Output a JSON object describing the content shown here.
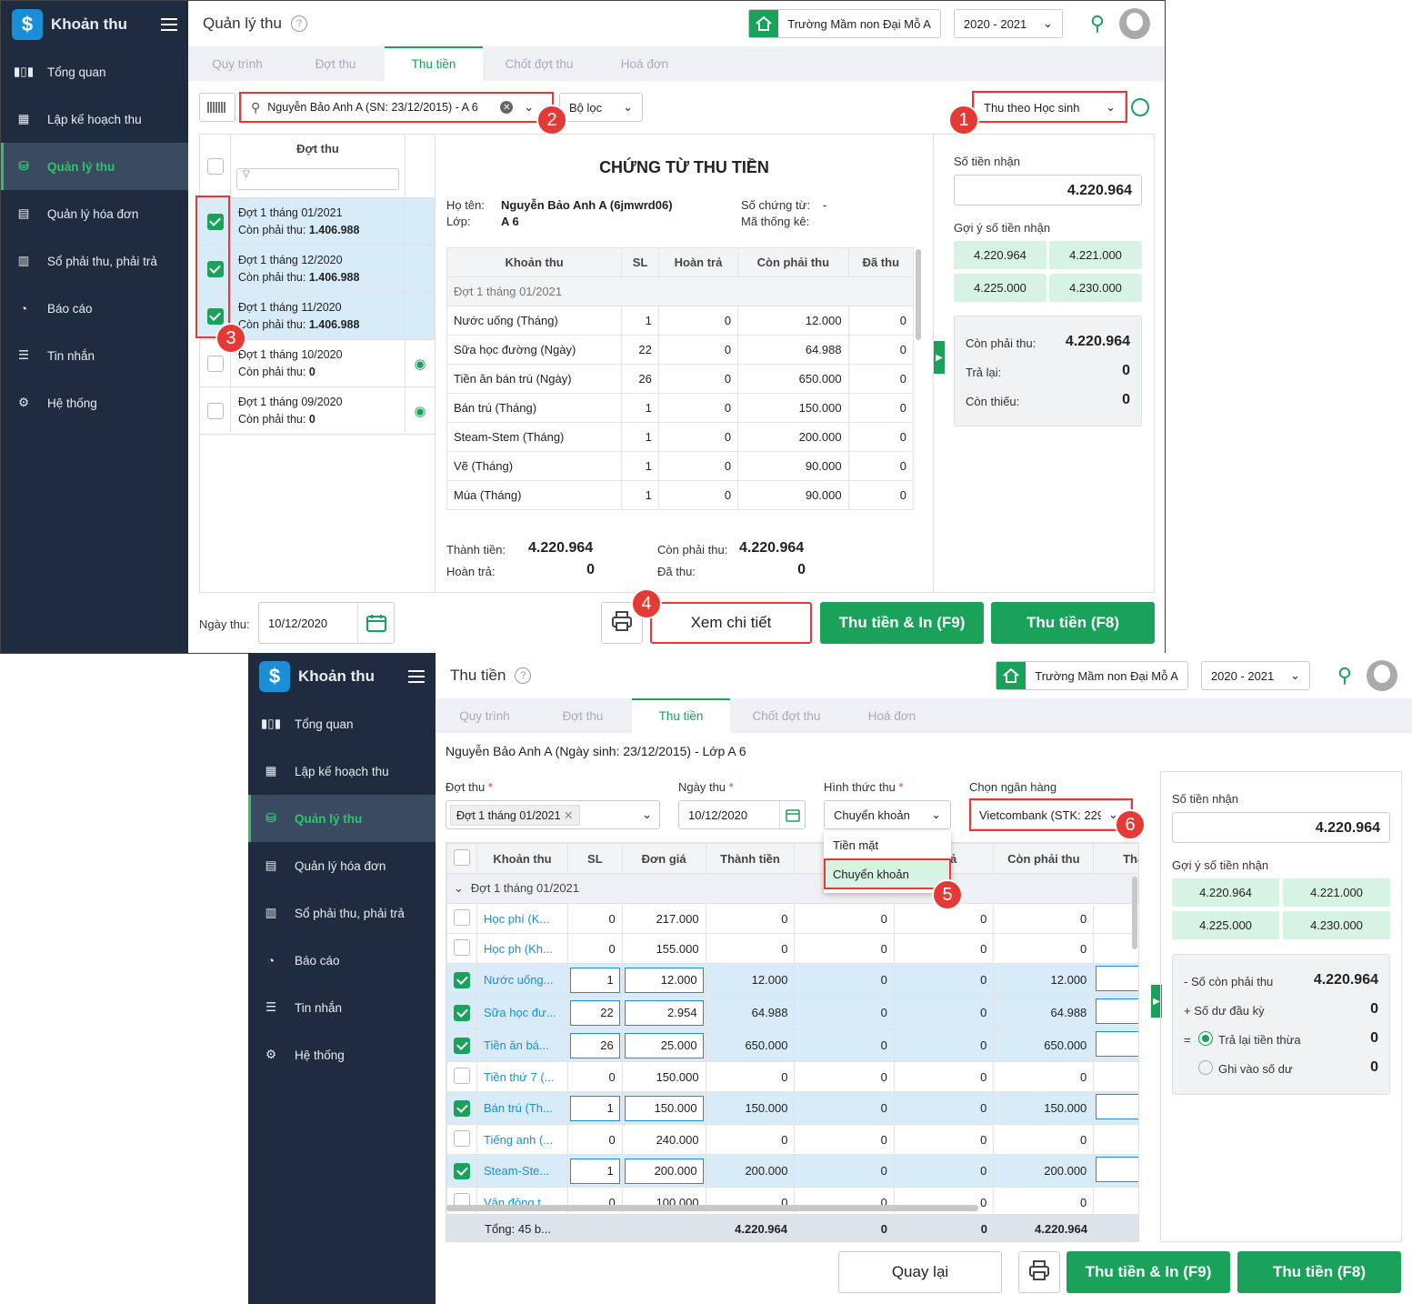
{
  "app": {
    "name": "Khoản thu",
    "logo": "$"
  },
  "nav": [
    "Tổng quan",
    "Lập kế hoạch thu",
    "Quản lý thu",
    "Quản lý hóa đơn",
    "Sổ phải thu, phải trả",
    "Báo cáo",
    "Tin nhắn",
    "Hệ thống"
  ],
  "header": {
    "school": "Trường Mầm non Đại Mỗ A",
    "year": "2020 - 2021"
  },
  "tabs": [
    "Quy trình",
    "Đợt thu",
    "Thu tiền",
    "Chốt đợt thu",
    "Hoá đơn"
  ],
  "screen1": {
    "title": "Quản lý thu",
    "search_value": "Nguyễn Bảo Anh A (SN: 23/12/2015) - A 6",
    "filter": "Bộ lọc",
    "mode": "Thu theo Học sinh",
    "batch_header": "Đợt thu",
    "batches": [
      {
        "name": "Đợt 1 tháng 01/2021",
        "due_label": "Còn phải thu: ",
        "due": "1.406.988",
        "checked": true
      },
      {
        "name": "Đợt 1 tháng 12/2020",
        "due_label": "Còn phải thu: ",
        "due": "1.406.988",
        "checked": true
      },
      {
        "name": "Đợt 1 tháng 11/2020",
        "due_label": "Còn phải thu: ",
        "due": "1.406.988",
        "checked": true
      },
      {
        "name": "Đợt 1 tháng 10/2020",
        "due_label": "Còn phải thu: ",
        "due": "0",
        "checked": false
      },
      {
        "name": "Đợt 1 tháng 09/2020",
        "due_label": "Còn phải thu: ",
        "due": "0",
        "checked": false
      }
    ],
    "voucher_title": "CHỨNG TỪ THU TIỀN",
    "name_label": "Họ tên:",
    "name": "Nguyễn Bảo Anh A (6jmwrd06)",
    "class_label": "Lớp:",
    "class": "A 6",
    "voucher_no_label": "Số chứng từ:",
    "voucher_no": "-",
    "stat_code_label": "Mã thống kê:",
    "columns": [
      "Khoản thu",
      "SL",
      "Hoàn trả",
      "Còn phải thu",
      "Đã thu"
    ],
    "group": "Đợt 1 tháng 01/2021",
    "rows": [
      [
        "Nước uống (Tháng)",
        "1",
        "0",
        "12.000",
        "0"
      ],
      [
        "Sữa học đường (Ngày)",
        "22",
        "0",
        "64.988",
        "0"
      ],
      [
        "Tiền ăn bán trú (Ngày)",
        "26",
        "0",
        "650.000",
        "0"
      ],
      [
        "Bán trú (Tháng)",
        "1",
        "0",
        "150.000",
        "0"
      ],
      [
        "Steam-Stem (Tháng)",
        "1",
        "0",
        "200.000",
        "0"
      ],
      [
        "Vẽ (Tháng)",
        "1",
        "0",
        "90.000",
        "0"
      ],
      [
        "Múa (Tháng)",
        "1",
        "0",
        "90.000",
        "0"
      ]
    ],
    "totals": {
      "amount_label": "Thành tiền:",
      "amount": "4.220.964",
      "refund_label": "Hoàn trả:",
      "refund": "0",
      "due_label": "Còn phải thu:",
      "due": "4.220.964",
      "paid_label": "Đã thu:",
      "paid": "0"
    },
    "received_label": "Số tiền nhận",
    "received": "4.220.964",
    "suggest_label": "Gợi ý số tiền nhận",
    "suggestions": [
      "4.220.964",
      "4.221.000",
      "4.225.000",
      "4.230.000"
    ],
    "summary": [
      [
        "Còn phải thu:",
        "4.220.964"
      ],
      [
        "Trả lại:",
        "0"
      ],
      [
        "Còn thiếu:",
        "0"
      ]
    ],
    "date_label": "Ngày thu:",
    "date": "10/12/2020",
    "btn_detail": "Xem chi tiết",
    "btn_pay_print": "Thu tiền & In (F9)",
    "btn_pay": "Thu tiền (F8)"
  },
  "screen2": {
    "title": "Thu tiền",
    "student": "Nguyễn Bảo Anh A (Ngày sinh: 23/12/2015) - Lớp A 6",
    "batch_label": "Đợt thu",
    "batch_tag": "Đợt 1 tháng 01/2021",
    "date_label": "Ngày thu",
    "date": "10/12/2020",
    "method_label": "Hình thức thu",
    "method": "Chuyển khoản",
    "method_options": [
      "Tiền mặt",
      "Chuyển khoản"
    ],
    "bank_label": "Chọn ngân hàng",
    "bank": "Vietcombank (STK: 229",
    "columns": [
      "Khoản thu",
      "SL",
      "Đơn giá",
      "Thành tiền",
      "",
      "n trả",
      "Còn phải thu",
      "Tha"
    ],
    "group": "Đợt 1 tháng 01/2021",
    "rows": [
      {
        "name": "Học phí (K...",
        "sl": "0",
        "price": "217.000",
        "amount": "0",
        "c5": "0",
        "c6": "0",
        "due": "0",
        "checked": false
      },
      {
        "name": "Học ph (Kh...",
        "sl": "0",
        "price": "155.000",
        "amount": "0",
        "c5": "0",
        "c6": "0",
        "due": "0",
        "checked": false
      },
      {
        "name": "Nước uống...",
        "sl": "1",
        "price": "12.000",
        "amount": "12.000",
        "c5": "0",
        "c6": "0",
        "due": "12.000",
        "checked": true
      },
      {
        "name": "Sữa học đư...",
        "sl": "22",
        "price": "2.954",
        "amount": "64.988",
        "c5": "0",
        "c6": "0",
        "due": "64.988",
        "checked": true
      },
      {
        "name": "Tiền ăn bá...",
        "sl": "26",
        "price": "25.000",
        "amount": "650.000",
        "c5": "0",
        "c6": "0",
        "due": "650.000",
        "checked": true
      },
      {
        "name": "Tiền thứ 7 (...",
        "sl": "0",
        "price": "150.000",
        "amount": "0",
        "c5": "0",
        "c6": "0",
        "due": "0",
        "checked": false
      },
      {
        "name": "Bán trú (Th...",
        "sl": "1",
        "price": "150.000",
        "amount": "150.000",
        "c5": "0",
        "c6": "0",
        "due": "150.000",
        "checked": true
      },
      {
        "name": "Tiếng anh (...",
        "sl": "0",
        "price": "240.000",
        "amount": "0",
        "c5": "0",
        "c6": "0",
        "due": "0",
        "checked": false
      },
      {
        "name": "Steam-Ste...",
        "sl": "1",
        "price": "200.000",
        "amount": "200.000",
        "c5": "0",
        "c6": "0",
        "due": "200.000",
        "checked": true
      },
      {
        "name": "Vận động t...",
        "sl": "0",
        "price": "100.000",
        "amount": "0",
        "c5": "0",
        "c6": "0",
        "due": "0",
        "checked": false
      }
    ],
    "footer": {
      "label": "Tổng: 45 b...",
      "amount": "4.220.964",
      "c5": "0",
      "c6": "0",
      "due": "4.220.964"
    },
    "received_label": "Số tiền nhận",
    "received": "4.220.964",
    "suggest_label": "Gợi ý số tiền nhận",
    "suggestions": [
      "4.220.964",
      "4.221.000",
      "4.225.000",
      "4.230.000"
    ],
    "summary": [
      [
        "- Số còn phải thu",
        "4.220.964"
      ],
      [
        "+ Số dư đầu kỳ",
        "0"
      ]
    ],
    "eq": "=",
    "opt_return": "Trả lại tiền thừa",
    "opt_return_val": "0",
    "opt_balance": "Ghi vào số dư",
    "opt_balance_val": "0",
    "btn_back": "Quay lại",
    "btn_pay_print": "Thu tiền & In (F9)",
    "btn_pay": "Thu tiền (F8)"
  },
  "steps": [
    "1",
    "2",
    "3",
    "4",
    "5",
    "6"
  ]
}
